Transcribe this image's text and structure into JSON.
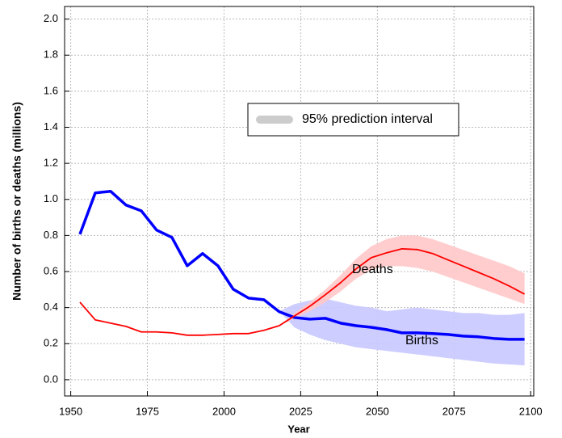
{
  "chart_data": {
    "type": "line",
    "x_label": "Year",
    "y_label": "Number of births or deaths (millions)",
    "legend_label": "95% prediction interval",
    "x": [
      1953,
      1958,
      1963,
      1968,
      1973,
      1978,
      1983,
      1988,
      1993,
      1998,
      2003,
      2008,
      2013,
      2018,
      2023,
      2028,
      2033,
      2038,
      2043,
      2048,
      2053,
      2058,
      2063,
      2068,
      2073,
      2078,
      2083,
      2088,
      2093,
      2098
    ],
    "series": [
      {
        "name": "Births",
        "color": "#0000ff",
        "band_color": "#c8c8ff",
        "values": [
          0.807,
          1.036,
          1.045,
          0.969,
          0.937,
          0.83,
          0.789,
          0.632,
          0.7,
          0.632,
          0.502,
          0.453,
          0.444,
          0.377,
          0.345,
          0.336,
          0.341,
          0.314,
          0.3,
          0.291,
          0.278,
          0.26,
          0.26,
          0.256,
          0.251,
          0.242,
          0.238,
          0.229,
          0.224,
          0.224
        ],
        "lower": [
          null,
          null,
          null,
          null,
          null,
          null,
          null,
          null,
          null,
          null,
          null,
          null,
          null,
          0.38,
          0.29,
          0.25,
          0.22,
          0.2,
          0.18,
          0.17,
          0.16,
          0.15,
          0.14,
          0.13,
          0.12,
          0.11,
          0.1,
          0.09,
          0.085,
          0.08
        ],
        "upper": [
          null,
          null,
          null,
          null,
          null,
          null,
          null,
          null,
          null,
          null,
          null,
          null,
          null,
          0.38,
          0.42,
          0.44,
          0.45,
          0.43,
          0.41,
          0.4,
          0.38,
          0.39,
          0.4,
          0.39,
          0.38,
          0.37,
          0.37,
          0.36,
          0.36,
          0.37
        ]
      },
      {
        "name": "Deaths",
        "color": "#ff0000",
        "band_color": "#ffc8c8",
        "values": [
          0.43,
          0.332,
          0.314,
          0.296,
          0.265,
          0.265,
          0.26,
          0.247,
          0.247,
          0.251,
          0.256,
          0.256,
          0.274,
          0.3,
          0.354,
          0.408,
          0.471,
          0.538,
          0.614,
          0.677,
          0.704,
          0.726,
          0.722,
          0.7,
          0.665,
          0.63,
          0.595,
          0.56,
          0.52,
          0.475
        ],
        "lower": [
          null,
          null,
          null,
          null,
          null,
          null,
          null,
          null,
          null,
          null,
          null,
          null,
          null,
          0.3,
          0.34,
          0.38,
          0.43,
          0.49,
          0.56,
          0.61,
          0.63,
          0.63,
          0.62,
          0.6,
          0.57,
          0.54,
          0.51,
          0.48,
          0.45,
          0.42
        ],
        "upper": [
          null,
          null,
          null,
          null,
          null,
          null,
          null,
          null,
          null,
          null,
          null,
          null,
          null,
          0.3,
          0.37,
          0.43,
          0.5,
          0.58,
          0.67,
          0.74,
          0.78,
          0.8,
          0.8,
          0.78,
          0.75,
          0.72,
          0.69,
          0.66,
          0.63,
          0.59
        ]
      }
    ],
    "xlim": [
      1948,
      2101
    ],
    "ylim": [
      -0.09,
      2.07
    ],
    "xticks": [
      1950,
      1975,
      2000,
      2025,
      2050,
      2075,
      2100
    ],
    "yticks": [
      {
        "value": 0,
        "label": "0.0"
      },
      0.2,
      0.4,
      0.6,
      0.8,
      {
        "value": 1,
        "label": "1.0"
      },
      1.2,
      1.4,
      1.6,
      1.8,
      {
        "value": 2,
        "label": "2.0"
      }
    ],
    "grid": true,
    "legend_color": "#cccccc"
  }
}
